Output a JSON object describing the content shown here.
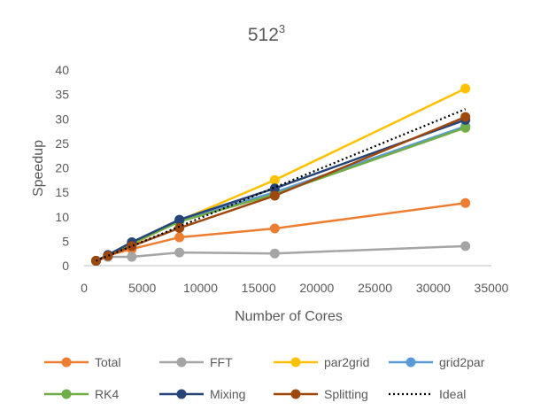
{
  "chart_data": {
    "type": "scatter",
    "title": "512",
    "title_superscript": "3",
    "xlabel": "Number of Cores",
    "ylabel": "Speedup",
    "xlim": [
      0,
      35000
    ],
    "ylim": [
      0,
      40
    ],
    "xticks": [
      0,
      5000,
      10000,
      15000,
      20000,
      25000,
      30000,
      35000
    ],
    "yticks": [
      0,
      5,
      10,
      15,
      20,
      25,
      30,
      35,
      40
    ],
    "grid": false,
    "legend_position": "bottom",
    "x": [
      1024,
      2048,
      4096,
      8192,
      16384,
      32768
    ],
    "series": [
      {
        "name": "Total",
        "color": "#ED7D31",
        "marker": true,
        "dash": "",
        "values": [
          1,
          2.1,
          3.4,
          5.8,
          7.6,
          12.8
        ]
      },
      {
        "name": "FFT",
        "color": "#A5A5A5",
        "marker": true,
        "dash": "",
        "values": [
          1,
          1.8,
          1.8,
          2.7,
          2.5,
          4.0
        ]
      },
      {
        "name": "par2grid",
        "color": "#FFC000",
        "marker": true,
        "dash": "",
        "values": [
          1,
          2.1,
          4.3,
          9.2,
          17.5,
          36.2
        ]
      },
      {
        "name": "grid2par",
        "color": "#5B9BD5",
        "marker": true,
        "dash": "",
        "values": [
          1,
          2.1,
          4.6,
          9.3,
          15.0,
          28.5
        ]
      },
      {
        "name": "RK4",
        "color": "#70AD47",
        "marker": true,
        "dash": "",
        "values": [
          1,
          2.1,
          4.5,
          9.0,
          14.6,
          28.2
        ]
      },
      {
        "name": "Mixing",
        "color": "#264478",
        "marker": true,
        "dash": "",
        "values": [
          1,
          2.2,
          4.8,
          9.4,
          15.8,
          29.8
        ]
      },
      {
        "name": "Splitting",
        "color": "#9E480E",
        "marker": true,
        "dash": "",
        "values": [
          1,
          2.0,
          4.0,
          7.7,
          14.3,
          30.4
        ]
      },
      {
        "name": "Ideal",
        "color": "#000000",
        "marker": false,
        "dash": "2,3",
        "values": [
          1,
          2,
          4,
          8,
          16,
          32
        ]
      }
    ]
  }
}
